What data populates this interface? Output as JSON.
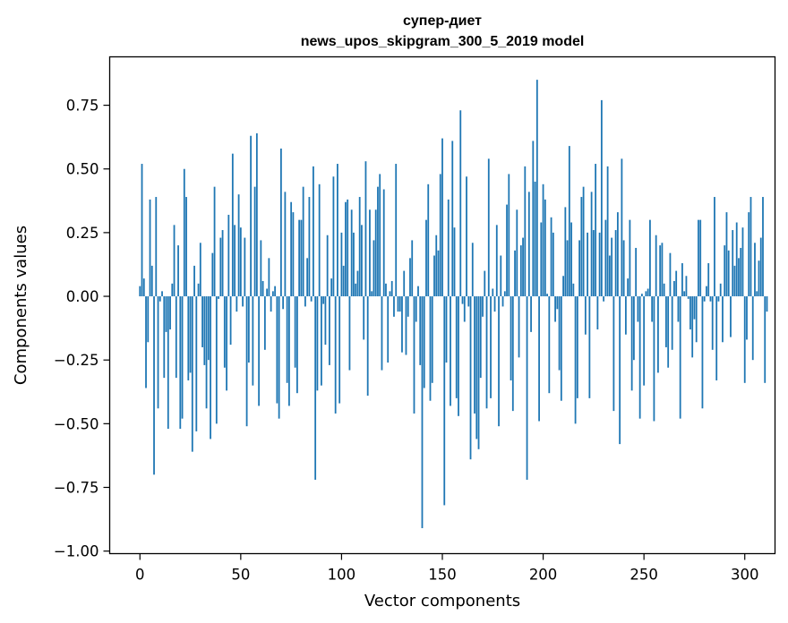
{
  "chart_data": {
    "type": "bar",
    "title_line1": "супер-диет",
    "title_line2": "news_upos_skipgram_300_5_2019 model",
    "xlabel": "Vector components",
    "ylabel": "Components values",
    "xlim": [
      -15,
      315
    ],
    "ylim": [
      -1.01,
      0.94
    ],
    "xticks": [
      0,
      50,
      100,
      150,
      200,
      250,
      300
    ],
    "yticks": [
      -1.0,
      -0.75,
      -0.5,
      -0.25,
      0.0,
      0.25,
      0.5,
      0.75
    ],
    "ytick_labels": [
      "−1.00",
      "−0.75",
      "−0.50",
      "−0.25",
      "0.00",
      "0.25",
      "0.50",
      "0.75"
    ],
    "bar_color": "#1f77b4",
    "grid": false,
    "values": [
      0.04,
      0.52,
      0.07,
      -0.36,
      -0.18,
      0.38,
      0.12,
      -0.7,
      0.39,
      -0.44,
      -0.02,
      0.02,
      -0.32,
      -0.14,
      -0.52,
      -0.13,
      0.05,
      0.28,
      -0.32,
      0.2,
      -0.52,
      -0.48,
      0.5,
      0.39,
      -0.33,
      -0.3,
      -0.61,
      0.12,
      -0.53,
      0.05,
      0.21,
      -0.2,
      -0.27,
      -0.44,
      -0.25,
      -0.56,
      0.17,
      0.43,
      -0.5,
      -0.01,
      0.23,
      0.26,
      -0.28,
      -0.37,
      0.32,
      -0.19,
      0.56,
      0.28,
      -0.06,
      0.4,
      0.27,
      -0.04,
      0.23,
      -0.51,
      -0.26,
      0.63,
      -0.35,
      0.43,
      0.64,
      -0.43,
      0.22,
      0.06,
      -0.21,
      0.03,
      0.15,
      -0.06,
      0.02,
      0.04,
      -0.42,
      -0.48,
      0.58,
      -0.05,
      0.41,
      -0.34,
      -0.43,
      0.37,
      0.33,
      -0.28,
      -0.38,
      0.3,
      0.3,
      0.43,
      -0.04,
      0.15,
      0.39,
      -0.02,
      0.51,
      -0.72,
      -0.37,
      0.44,
      -0.35,
      -0.03,
      -0.19,
      0.24,
      -0.27,
      0.07,
      0.47,
      -0.46,
      0.52,
      -0.42,
      0.25,
      0.12,
      0.37,
      0.38,
      -0.29,
      0.34,
      0.25,
      0.05,
      0.1,
      0.39,
      0.28,
      -0.17,
      0.53,
      -0.39,
      0.34,
      0.02,
      0.22,
      0.34,
      0.43,
      0.48,
      -0.29,
      0.42,
      0.05,
      -0.26,
      0.02,
      0.06,
      -0.08,
      0.52,
      -0.06,
      -0.06,
      -0.22,
      0.1,
      -0.23,
      -0.08,
      0.15,
      0.22,
      -0.46,
      -0.1,
      0.04,
      -0.27,
      -0.91,
      -0.36,
      0.3,
      0.44,
      -0.41,
      -0.34,
      0.16,
      0.24,
      0.18,
      0.48,
      0.62,
      -0.82,
      -0.26,
      0.38,
      -0.43,
      0.61,
      0.27,
      -0.4,
      -0.47,
      0.73,
      -0.03,
      -0.1,
      0.47,
      -0.04,
      -0.64,
      0.21,
      -0.46,
      -0.56,
      -0.6,
      -0.32,
      -0.08,
      0.1,
      -0.44,
      0.54,
      -0.4,
      0.03,
      -0.06,
      0.28,
      -0.51,
      0.16,
      -0.04,
      0.02,
      0.36,
      0.48,
      -0.33,
      -0.45,
      0.18,
      0.34,
      -0.24,
      0.2,
      0.23,
      0.51,
      -0.72,
      0.41,
      -0.14,
      0.61,
      0.45,
      0.85,
      -0.49,
      0.29,
      0.44,
      0.38,
      0.01,
      -0.38,
      0.31,
      0.25,
      -0.1,
      -0.05,
      -0.29,
      -0.41,
      0.08,
      0.35,
      0.22,
      0.59,
      0.29,
      0.05,
      -0.5,
      -0.4,
      0.22,
      0.39,
      0.43,
      -0.15,
      0.25,
      -0.4,
      0.41,
      0.26,
      0.52,
      -0.13,
      0.25,
      0.77,
      -0.02,
      0.3,
      0.51,
      0.16,
      0.23,
      -0.45,
      0.26,
      0.33,
      -0.58,
      0.54,
      0.22,
      -0.15,
      0.07,
      0.3,
      -0.37,
      -0.25,
      0.19,
      -0.1,
      -0.48,
      0.01,
      -0.35,
      0.02,
      0.03,
      0.3,
      -0.1,
      -0.49,
      0.24,
      -0.3,
      0.2,
      0.21,
      0.05,
      -0.2,
      -0.28,
      0.17,
      -0.21,
      0.06,
      0.1,
      -0.1,
      -0.48,
      0.13,
      0.02,
      0.08,
      -0.01,
      -0.13,
      -0.24,
      -0.09,
      -0.18,
      0.3,
      0.3,
      -0.44,
      -0.02,
      0.04,
      0.13,
      -0.02,
      -0.21,
      0.39,
      -0.33,
      -0.02,
      0.05,
      -0.18,
      0.2,
      0.33,
      0.18,
      -0.16,
      0.26,
      0.12,
      0.29,
      0.15,
      0.19,
      0.27,
      -0.34,
      -0.17,
      0.33,
      0.39,
      -0.25,
      0.21,
      0.02,
      0.14,
      0.23,
      0.39,
      -0.34,
      -0.06,
      0.0
    ]
  }
}
